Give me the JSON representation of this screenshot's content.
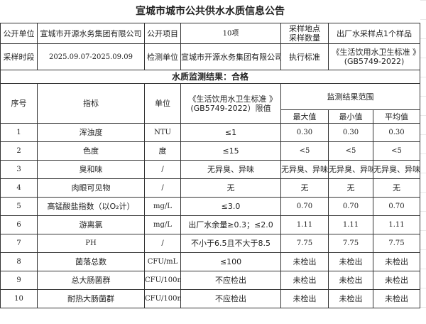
{
  "title": "宣城市城市公共供水水质信息公告",
  "info": {
    "r1": [
      "公开单位",
      "宣城市开源水务集团有限公司",
      "公开项目",
      "10项",
      "采样地点采样数量",
      "出厂水采样点1个样品"
    ],
    "r2": [
      "采样时段",
      "2025.09.07-2025.09.09",
      "检测单位",
      "宣城市开源水务集团有限公司",
      "执行标准",
      "《生活饮用水卫生标准 》(GB5749-2022)"
    ]
  },
  "result": "水质监测结果：合格",
  "headers": {
    "no": "序号",
    "item": "指标",
    "unit": "单位",
    "limit": "《生活饮用水卫生标准 》(GB5749-2022）限值",
    "range": "监测结果范围",
    "max": "最大值",
    "min": "最小值",
    "avg": "平均值"
  },
  "rows": [
    [
      "1",
      "浑浊度",
      "NTU",
      "≤1",
      "0.30",
      "0.30",
      "0.30"
    ],
    [
      "2",
      "色度",
      "度",
      "≤15",
      "<5",
      "<5",
      "<5"
    ],
    [
      "3",
      "臭和味",
      "/",
      "无异臭、异味",
      "无异臭、异味",
      "无异臭、异味",
      "无异臭、异味"
    ],
    [
      "4",
      "肉眼可见物",
      "/",
      "无",
      "无",
      "无",
      "无"
    ],
    [
      "5",
      "高锰酸盐指数（以O₂计）",
      "mg/L",
      "≤3.0",
      "0.70",
      "0.70",
      "0.70"
    ],
    [
      "6",
      "游离氯",
      "mg/L",
      "出厂水余量≥0.3；≤2.0",
      "1.11",
      "1.11",
      "1.11"
    ],
    [
      "7",
      "PH",
      "/",
      "不小于6.5且不大于8.5",
      "7.75",
      "7.75",
      "7.75"
    ],
    [
      "8",
      "菌落总数",
      "CFU/mL",
      "≤100",
      "未检出",
      "未检出",
      "未检出"
    ],
    [
      "9",
      "总大肠菌群",
      "CFU/100mL",
      "不应检出",
      "未检出",
      "未检出",
      "未检出"
    ],
    [
      "10",
      "耐热大肠菌群",
      "CFU/100mL",
      "不应检出",
      "未检出",
      "未检出",
      "未检出"
    ]
  ]
}
